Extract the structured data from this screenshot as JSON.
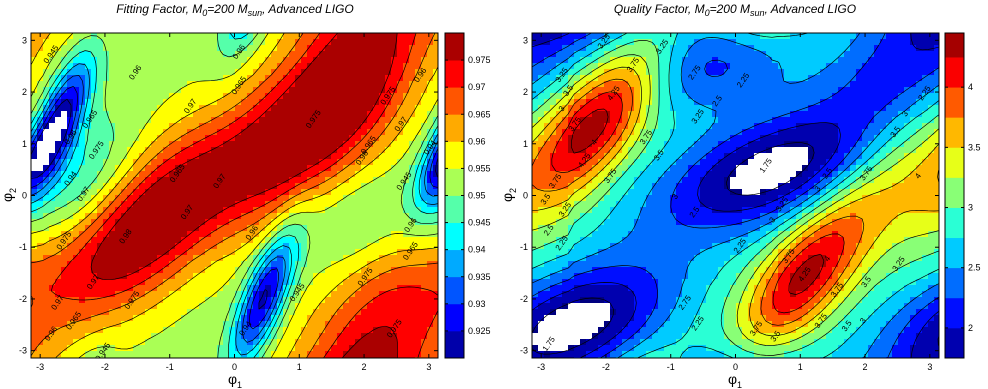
{
  "chart_data": [
    {
      "type": "heatmap",
      "subtype": "filled-contour",
      "title": {
        "pre": "Fitting Factor, M",
        "sub1": "0",
        "mid": "=200 M",
        "sub2": "sun",
        "post": ", Advanced LIGO"
      },
      "xlabel": {
        "main": "φ",
        "sub": "1"
      },
      "ylabel": {
        "main": "φ",
        "sub": "2"
      },
      "xlim": [
        -3.1416,
        3.1416
      ],
      "ylim": [
        -3.1416,
        3.1416
      ],
      "xticks": [
        "-3",
        "-2",
        "-1",
        "0",
        "1",
        "2",
        "3"
      ],
      "yticks": [
        "3",
        "2",
        "1",
        "0",
        "-1",
        "-2",
        "-3"
      ],
      "colormap": "jet",
      "clim": [
        0.92,
        0.98
      ],
      "colorbar_ticks": [
        "0.975",
        "0.97",
        "0.965",
        "0.96",
        "0.955",
        "0.95",
        "0.945",
        "0.94",
        "0.935",
        "0.93",
        "0.925"
      ],
      "contour_levels": [
        0.925,
        0.93,
        0.935,
        0.94,
        0.945,
        0.95,
        0.955,
        0.96,
        0.965,
        0.97,
        0.975
      ],
      "contour_labels": [
        {
          "x": -1.65,
          "y": -0.82,
          "text": "0.98"
        },
        {
          "x": -1.55,
          "y": -2.05,
          "text": "0.975"
        },
        {
          "x": -2.15,
          "y": -1.7,
          "text": "0.97"
        },
        {
          "x": -2.6,
          "y": -0.9,
          "text": "0.975"
        },
        {
          "x": -2.7,
          "y": -2.1,
          "text": "0.97"
        },
        {
          "x": -2.45,
          "y": -2.45,
          "text": "0.965"
        },
        {
          "x": -2.8,
          "y": -2.7,
          "text": "0.96"
        },
        {
          "x": -2.0,
          "y": -3.05,
          "text": "0.945"
        },
        {
          "x": -0.7,
          "y": -0.35,
          "text": "0.97"
        },
        {
          "x": -0.85,
          "y": 0.4,
          "text": "0.965"
        },
        {
          "x": -2.1,
          "y": 0.85,
          "text": "0.975"
        },
        {
          "x": -2.8,
          "y": 2.7,
          "text": "0.945"
        },
        {
          "x": -2.5,
          "y": 0.3,
          "text": "0.94"
        },
        {
          "x": -2.3,
          "y": 0.0,
          "text": "0.97"
        },
        {
          "x": -2.5,
          "y": 1.1,
          "text": "0.96"
        },
        {
          "x": -2.2,
          "y": 1.45,
          "text": "0.965"
        },
        {
          "x": -1.5,
          "y": 2.35,
          "text": "0.96"
        },
        {
          "x": -0.65,
          "y": 1.7,
          "text": "0.97"
        },
        {
          "x": -0.2,
          "y": 0.25,
          "text": "0.97"
        },
        {
          "x": 0.1,
          "y": 2.75,
          "text": "0.96"
        },
        {
          "x": 0.1,
          "y": 2.1,
          "text": "0.965"
        },
        {
          "x": 1.25,
          "y": 1.45,
          "text": "0.975"
        },
        {
          "x": 2.4,
          "y": 1.9,
          "text": "0.975"
        },
        {
          "x": 2.6,
          "y": 1.35,
          "text": "0.97"
        },
        {
          "x": 2.1,
          "y": 0.95,
          "text": "0.965"
        },
        {
          "x": 2.0,
          "y": 0.7,
          "text": "0.96"
        },
        {
          "x": 0.3,
          "y": -0.75,
          "text": "0.96"
        },
        {
          "x": 1.0,
          "y": -1.9,
          "text": "0.945"
        },
        {
          "x": 0.2,
          "y": -2.6,
          "text": "0.94"
        },
        {
          "x": 2.05,
          "y": -1.6,
          "text": "0.975"
        },
        {
          "x": 2.5,
          "y": -2.6,
          "text": "0.975"
        },
        {
          "x": 2.75,
          "y": -0.6,
          "text": "0.96"
        },
        {
          "x": 2.75,
          "y": -1.1,
          "text": "0.965"
        },
        {
          "x": 2.9,
          "y": 2.3,
          "text": "0.96"
        },
        {
          "x": 2.65,
          "y": 0.25,
          "text": "0.945"
        },
        {
          "x": 3.05,
          "y": 0.9,
          "text": "0.94"
        }
      ]
    },
    {
      "type": "heatmap",
      "subtype": "filled-contour",
      "title": {
        "pre": "Quality Factor, M",
        "sub1": "0",
        "mid": "=200 M",
        "sub2": "sun",
        "post": ", Advanced LIGO"
      },
      "xlabel": {
        "main": "φ",
        "sub": "1"
      },
      "ylabel": {
        "main": "φ",
        "sub": "2"
      },
      "xlim": [
        -3.1416,
        3.1416
      ],
      "ylim": [
        -3.1416,
        3.1416
      ],
      "xticks": [
        "-3",
        "-2",
        "-1",
        "0",
        "1",
        "2",
        "3"
      ],
      "yticks": [
        "3",
        "2",
        "1",
        "0",
        "-1",
        "-2",
        "-3"
      ],
      "colormap": "jet",
      "clim": [
        1.75,
        4.45
      ],
      "colorbar_ticks": [
        "4",
        "3.5",
        "3",
        "2.5",
        "2"
      ],
      "contour_levels": [
        1.75,
        2,
        2.25,
        2.5,
        2.75,
        3,
        3.25,
        3.5,
        3.75,
        4,
        4.25
      ],
      "contour_labels": [
        {
          "x": -2.0,
          "y": 2.95,
          "text": "3.25"
        },
        {
          "x": -1.55,
          "y": 2.5,
          "text": "3.75"
        },
        {
          "x": -1.1,
          "y": 2.85,
          "text": "3.25"
        },
        {
          "x": -2.65,
          "y": 2.3,
          "text": "3.25"
        },
        {
          "x": -2.55,
          "y": 2.0,
          "text": "3.5"
        },
        {
          "x": -2.65,
          "y": 1.65,
          "text": "3"
        },
        {
          "x": -2.45,
          "y": 1.35,
          "text": "3.75"
        },
        {
          "x": -1.85,
          "y": 1.95,
          "text": "4.25"
        },
        {
          "x": -2.15,
          "y": 1.0,
          "text": "4"
        },
        {
          "x": -1.35,
          "y": 1.1,
          "text": "3.75"
        },
        {
          "x": -1.15,
          "y": 0.75,
          "text": "3.5"
        },
        {
          "x": -2.3,
          "y": 0.65,
          "text": "4.25"
        },
        {
          "x": -1.9,
          "y": 0.35,
          "text": "3.75"
        },
        {
          "x": -2.75,
          "y": 0.25,
          "text": "3.75"
        },
        {
          "x": -2.9,
          "y": -0.1,
          "text": "3.5"
        },
        {
          "x": -2.6,
          "y": -0.3,
          "text": "3.25"
        },
        {
          "x": -2.85,
          "y": -0.7,
          "text": "2.5"
        },
        {
          "x": -2.65,
          "y": -0.95,
          "text": "2.25"
        },
        {
          "x": -0.55,
          "y": 1.5,
          "text": "3.25"
        },
        {
          "x": -0.25,
          "y": 1.8,
          "text": "2.5"
        },
        {
          "x": 0.15,
          "y": 2.2,
          "text": "2.25"
        },
        {
          "x": -0.6,
          "y": 2.35,
          "text": "2.75"
        },
        {
          "x": -0.9,
          "y": -0.05,
          "text": "3"
        },
        {
          "x": -0.6,
          "y": -0.35,
          "text": "2.5"
        },
        {
          "x": 0.5,
          "y": 0.55,
          "text": "1.75"
        },
        {
          "x": 1.45,
          "y": 0.4,
          "text": "2.5"
        },
        {
          "x": 1.3,
          "y": 0.1,
          "text": "3"
        },
        {
          "x": 2.05,
          "y": 0.4,
          "text": "3.75"
        },
        {
          "x": 2.85,
          "y": 0.35,
          "text": "4"
        },
        {
          "x": 2.5,
          "y": 1.2,
          "text": "3.5"
        },
        {
          "x": 2.65,
          "y": 1.55,
          "text": "3"
        },
        {
          "x": 2.95,
          "y": 1.95,
          "text": "2.25"
        },
        {
          "x": 0.1,
          "y": -1.0,
          "text": "2.25"
        },
        {
          "x": 0.6,
          "y": -0.5,
          "text": "3"
        },
        {
          "x": 0.75,
          "y": -0.2,
          "text": "3.25"
        },
        {
          "x": 0.85,
          "y": -1.2,
          "text": "3.75"
        },
        {
          "x": 1.1,
          "y": -1.55,
          "text": "4.25"
        },
        {
          "x": 1.45,
          "y": -1.25,
          "text": "4"
        },
        {
          "x": 1.6,
          "y": -1.85,
          "text": "3.75"
        },
        {
          "x": 2.05,
          "y": -1.7,
          "text": "3.5"
        },
        {
          "x": 2.55,
          "y": -1.35,
          "text": "3.25"
        },
        {
          "x": -0.75,
          "y": -2.1,
          "text": "2.75"
        },
        {
          "x": -0.55,
          "y": -2.5,
          "text": "2.25"
        },
        {
          "x": 0.35,
          "y": -2.6,
          "text": "3.75"
        },
        {
          "x": 0.65,
          "y": -2.75,
          "text": "3.5"
        },
        {
          "x": 1.35,
          "y": -2.45,
          "text": "3.75"
        },
        {
          "x": 1.75,
          "y": -2.55,
          "text": "3.5"
        },
        {
          "x": 2.0,
          "y": -2.45,
          "text": "3"
        },
        {
          "x": -2.85,
          "y": -2.9,
          "text": "1.75"
        }
      ]
    }
  ]
}
